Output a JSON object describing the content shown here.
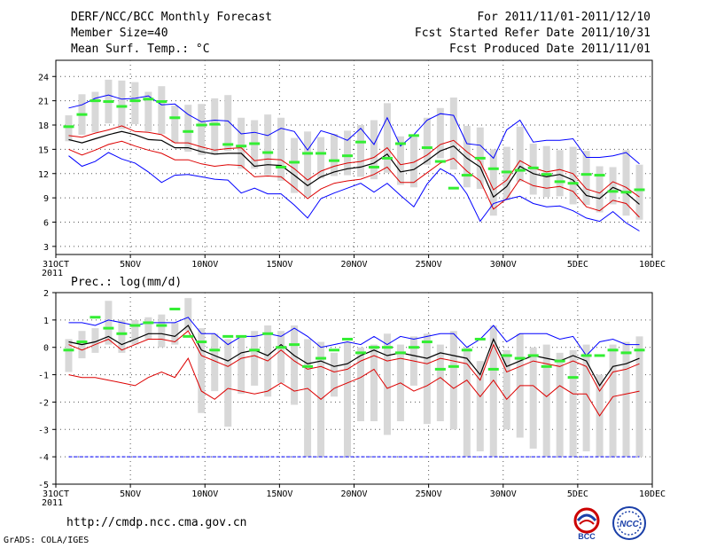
{
  "header": {
    "title": "DERF/NCC/BCC Monthly Forecast",
    "member_size": "Member Size=40",
    "variable": "Mean Surf. Temp.: °C",
    "period": "For 2011/11/01-2011/12/10",
    "fcst_started": "Fcst Started Refer Date 2011/10/31",
    "fcst_produced": "Fcst Produced Date 2011/11/01"
  },
  "footer": {
    "url": "http://cmdp.ncc.cma.gov.cn",
    "grads": "GrADS: COLA/IGES",
    "logo_bcc": "BCC",
    "logo_ncc": "NCC"
  },
  "colors": {
    "mean": "#000000",
    "upper": "#0000ff",
    "band": "#dd0000",
    "ensemble": "#d8d8d8",
    "obs": "#33ee33",
    "grid": "#555555"
  },
  "chart_data": [
    {
      "type": "line",
      "title": "",
      "ylabel": "Mean Surf. Temp.: °C",
      "ylim": [
        2,
        26
      ],
      "yticks": [
        3,
        6,
        9,
        12,
        15,
        18,
        21,
        24
      ],
      "xlim": [
        0,
        40
      ],
      "xticks": [
        {
          "pos": 0,
          "label": "31OCT",
          "sub": "2011"
        },
        {
          "pos": 5,
          "label": "5NOV"
        },
        {
          "pos": 10,
          "label": "10NOV"
        },
        {
          "pos": 15,
          "label": "15NOV"
        },
        {
          "pos": 20,
          "label": "20NOV"
        },
        {
          "pos": 25,
          "label": "25NOV"
        },
        {
          "pos": 30,
          "label": "30NOV"
        },
        {
          "pos": 35,
          "label": "5DEC"
        },
        {
          "pos": 40,
          "label": "10DEC"
        }
      ],
      "grid": true,
      "series": [
        {
          "name": "ensemble-mean",
          "color": "mean",
          "values": [
            16.2,
            15.8,
            16.3,
            16.8,
            17.2,
            16.8,
            16.2,
            16.1,
            15.2,
            15.2,
            14.7,
            14.4,
            14.5,
            14.5,
            12.9,
            13.1,
            13.0,
            11.8,
            10.5,
            11.6,
            12.2,
            12.6,
            12.8,
            13.3,
            14.4,
            12.2,
            12.5,
            13.6,
            14.8,
            15.4,
            13.9,
            12.8,
            9.1,
            10.4,
            12.9,
            12.0,
            11.6,
            11.9,
            11.2,
            9.3,
            8.9,
            10.3,
            9.6,
            8.2
          ]
        },
        {
          "name": "max",
          "color": "upper",
          "values": [
            20.1,
            20.5,
            21.3,
            21.7,
            21.2,
            21.3,
            21.6,
            20.5,
            20.6,
            19.3,
            18.4,
            18.6,
            18.5,
            16.9,
            17.1,
            16.7,
            17.6,
            17.2,
            14.9,
            17.3,
            16.8,
            16.1,
            17.6,
            15.6,
            18.9,
            15.4,
            16.8,
            18.6,
            19.4,
            19.2,
            15.7,
            15.5,
            13.9,
            17.4,
            18.6,
            15.9,
            16.1,
            16.1,
            16.3,
            14.0,
            14.0,
            14.2,
            14.6,
            13.2
          ]
        },
        {
          "name": "upper-band",
          "color": "band",
          "values": [
            16.7,
            16.5,
            17.0,
            17.4,
            17.9,
            17.2,
            17.1,
            16.8,
            15.8,
            15.8,
            15.3,
            14.9,
            15.1,
            15.2,
            13.6,
            13.8,
            13.7,
            12.6,
            11.2,
            12.3,
            12.9,
            13.3,
            13.5,
            14.0,
            15.2,
            13.1,
            13.4,
            14.3,
            15.6,
            16.1,
            14.7,
            13.5,
            10.0,
            11.2,
            13.6,
            12.7,
            12.2,
            12.5,
            12.0,
            10.1,
            9.6,
            11.0,
            10.3,
            9.1
          ]
        },
        {
          "name": "lower-band",
          "color": "band",
          "values": [
            15.0,
            14.3,
            14.9,
            15.6,
            16.0,
            15.4,
            14.9,
            14.5,
            13.7,
            13.7,
            13.2,
            12.9,
            13.1,
            13.0,
            11.6,
            11.7,
            11.6,
            10.3,
            8.9,
            10.1,
            10.8,
            11.1,
            11.3,
            11.9,
            12.8,
            10.9,
            10.9,
            12.1,
            13.3,
            13.9,
            12.3,
            11.1,
            7.6,
            8.9,
            11.3,
            10.5,
            10.2,
            10.4,
            9.8,
            7.9,
            7.4,
            8.7,
            8.3,
            6.6
          ]
        },
        {
          "name": "min",
          "color": "upper",
          "values": [
            14.2,
            12.9,
            13.5,
            14.6,
            13.8,
            13.3,
            12.2,
            10.9,
            11.8,
            11.9,
            11.6,
            11.3,
            11.2,
            9.6,
            10.2,
            9.5,
            9.5,
            8.1,
            6.5,
            8.9,
            9.6,
            10.2,
            10.8,
            9.7,
            10.8,
            9.3,
            7.9,
            10.7,
            12.6,
            11.7,
            9.5,
            6.1,
            8.3,
            8.8,
            9.2,
            8.3,
            7.9,
            8.0,
            7.4,
            6.5,
            6.1,
            7.3,
            5.9,
            4.9
          ]
        }
      ],
      "ensemble_ranges": [
        [
          16.0,
          19.2
        ],
        [
          16.8,
          21.8
        ],
        [
          17.1,
          22.1
        ],
        [
          18.2,
          23.6
        ],
        [
          17.5,
          23.5
        ],
        [
          18.1,
          23.3
        ],
        [
          17.2,
          22.1
        ],
        [
          16.9,
          22.8
        ],
        [
          15.8,
          20.4
        ],
        [
          14.7,
          20.5
        ],
        [
          14.3,
          20.6
        ],
        [
          14.3,
          21.3
        ],
        [
          14.8,
          21.7
        ],
        [
          12.6,
          18.9
        ],
        [
          12.6,
          18.6
        ],
        [
          11.8,
          19.3
        ],
        [
          11.1,
          18.9
        ],
        [
          9.6,
          16.4
        ],
        [
          9.1,
          17.2
        ],
        [
          11.4,
          16.5
        ],
        [
          11.7,
          16.9
        ],
        [
          11.8,
          17.3
        ],
        [
          11.6,
          18.0
        ],
        [
          11.3,
          18.6
        ],
        [
          12.1,
          20.7
        ],
        [
          10.6,
          16.6
        ],
        [
          10.3,
          16.5
        ],
        [
          13.1,
          18.9
        ],
        [
          13.9,
          20.1
        ],
        [
          12.5,
          21.4
        ],
        [
          10.3,
          17.9
        ],
        [
          10.1,
          17.7
        ],
        [
          6.8,
          15.0
        ],
        [
          8.7,
          15.3
        ],
        [
          11.0,
          17.8
        ],
        [
          9.4,
          15.7
        ],
        [
          9.1,
          15.4
        ],
        [
          9.2,
          14.9
        ],
        [
          8.2,
          15.3
        ],
        [
          8.1,
          14.8
        ],
        [
          7.2,
          12.9
        ],
        [
          8.2,
          12.8
        ],
        [
          6.8,
          14.9
        ],
        [
          6.3,
          13.1
        ]
      ],
      "observed": [
        17.8,
        19.3,
        21.0,
        20.9,
        20.3,
        21.0,
        21.2,
        20.9,
        18.9,
        17.2,
        18.0,
        18.1,
        15.6,
        15.4,
        15.7,
        14.6,
        12.8,
        13.4,
        14.5,
        14.5,
        13.6,
        14.2,
        15.9,
        12.8,
        13.9,
        15.7,
        16.7,
        15.2,
        13.5,
        10.2,
        11.8,
        13.9,
        12.6,
        12.2,
        12.4,
        12.7,
        11.9,
        11.0,
        10.8,
        11.9,
        11.8,
        9.8,
        9.7,
        10.0
      ]
    },
    {
      "type": "line",
      "title": "Prec.: log(mm/d)",
      "ylabel": "Prec.: log(mm/d)",
      "ylim": [
        -5,
        2
      ],
      "yticks": [
        -5,
        -4,
        -3,
        -2,
        -1,
        0,
        1,
        2
      ],
      "xlim": [
        0,
        40
      ],
      "xticks": [
        {
          "pos": 0,
          "label": "31OCT",
          "sub": "2011"
        },
        {
          "pos": 5,
          "label": "5NOV"
        },
        {
          "pos": 10,
          "label": "10NOV"
        },
        {
          "pos": 15,
          "label": "15NOV"
        },
        {
          "pos": 20,
          "label": "20NOV"
        },
        {
          "pos": 25,
          "label": "25NOV"
        },
        {
          "pos": 30,
          "label": "30NOV"
        },
        {
          "pos": 35,
          "label": "5DEC"
        },
        {
          "pos": 40,
          "label": "10DEC"
        }
      ],
      "grid": true,
      "series": [
        {
          "name": "max",
          "color": "upper",
          "values": [
            0.9,
            0.9,
            0.8,
            1.0,
            0.9,
            0.8,
            0.9,
            0.9,
            0.9,
            1.1,
            0.5,
            0.5,
            0.1,
            0.4,
            0.4,
            0.5,
            0.4,
            0.7,
            0.4,
            0.0,
            0.1,
            0.2,
            0.1,
            0.4,
            0.1,
            0.4,
            0.3,
            0.4,
            0.5,
            0.5,
            0.0,
            0.3,
            0.8,
            0.2,
            0.5,
            0.5,
            0.5,
            0.3,
            0.4,
            -0.3,
            0.2,
            0.3,
            0.1,
            0.1
          ]
        },
        {
          "name": "ensemble-mean",
          "color": "mean",
          "values": [
            0.2,
            0.1,
            0.2,
            0.4,
            0.1,
            0.3,
            0.5,
            0.5,
            0.4,
            0.8,
            -0.1,
            -0.3,
            -0.5,
            -0.2,
            -0.1,
            -0.3,
            0.1,
            -0.3,
            -0.6,
            -0.5,
            -0.7,
            -0.6,
            -0.3,
            -0.1,
            -0.3,
            -0.2,
            -0.3,
            -0.4,
            -0.2,
            -0.3,
            -0.4,
            -1.0,
            0.3,
            -0.7,
            -0.5,
            -0.3,
            -0.4,
            -0.5,
            -0.3,
            -0.5,
            -1.4,
            -0.7,
            -0.6,
            -0.4
          ]
        },
        {
          "name": "upper-band",
          "color": "band",
          "values": [
            0.1,
            -0.1,
            0.1,
            0.3,
            -0.1,
            0.1,
            0.3,
            0.3,
            0.2,
            0.6,
            -0.3,
            -0.5,
            -0.7,
            -0.4,
            -0.3,
            -0.5,
            -0.1,
            -0.5,
            -0.8,
            -0.7,
            -0.9,
            -0.8,
            -0.5,
            -0.3,
            -0.5,
            -0.4,
            -0.5,
            -0.6,
            -0.4,
            -0.5,
            -0.6,
            -1.2,
            0.1,
            -0.9,
            -0.7,
            -0.5,
            -0.6,
            -0.7,
            -0.5,
            -0.7,
            -1.6,
            -0.9,
            -0.8,
            -0.6
          ]
        },
        {
          "name": "lower-band",
          "color": "band",
          "values": [
            -1.0,
            -1.1,
            -1.1,
            -1.2,
            -1.3,
            -1.4,
            -1.1,
            -0.9,
            -1.1,
            -0.4,
            -1.6,
            -1.9,
            -1.5,
            -1.6,
            -1.7,
            -1.6,
            -1.3,
            -1.6,
            -1.5,
            -1.9,
            -1.5,
            -1.3,
            -1.1,
            -0.8,
            -1.5,
            -1.3,
            -1.6,
            -1.4,
            -1.1,
            -1.5,
            -1.2,
            -1.8,
            -1.2,
            -1.9,
            -1.4,
            -1.4,
            -1.8,
            -1.4,
            -1.7,
            -1.7,
            -2.5,
            -1.8,
            -1.7,
            -1.6
          ]
        },
        {
          "name": "floor",
          "color": "upper",
          "values": [
            -4,
            -4,
            -4,
            -4,
            -4,
            -4,
            -4,
            -4,
            -4,
            -4,
            -4,
            -4,
            -4,
            -4,
            -4,
            -4,
            -4,
            -4,
            -4,
            -4,
            -4,
            -4,
            -4,
            -4,
            -4,
            -4,
            -4,
            -4,
            -4,
            -4,
            -4,
            -4,
            -4,
            -4,
            -4,
            -4,
            -4,
            -4,
            -4,
            -4,
            -4,
            -4,
            -4,
            -4
          ]
        }
      ],
      "ensemble_ranges": [
        [
          -0.9,
          0.3
        ],
        [
          -0.4,
          0.6
        ],
        [
          -0.2,
          0.7
        ],
        [
          0.1,
          1.7
        ],
        [
          -0.2,
          1.0
        ],
        [
          0.1,
          1.0
        ],
        [
          0.3,
          1.1
        ],
        [
          0.0,
          1.2
        ],
        [
          0.1,
          0.9
        ],
        [
          0.6,
          1.8
        ],
        [
          -2.4,
          0.7
        ],
        [
          -1.6,
          0.5
        ],
        [
          -2.9,
          0.3
        ],
        [
          -1.7,
          0.4
        ],
        [
          -1.4,
          0.6
        ],
        [
          -1.8,
          0.8
        ],
        [
          -1.3,
          0.6
        ],
        [
          -2.1,
          0.8
        ],
        [
          -4.0,
          0.3
        ],
        [
          -4.0,
          0.2
        ],
        [
          -1.8,
          -0.2
        ],
        [
          -4.0,
          0.2
        ],
        [
          -2.7,
          0.0
        ],
        [
          -2.7,
          0.1
        ],
        [
          -3.2,
          0.5
        ],
        [
          -2.7,
          0.1
        ],
        [
          -1.4,
          0.4
        ],
        [
          -2.8,
          0.5
        ],
        [
          -2.7,
          0.1
        ],
        [
          -3.0,
          0.6
        ],
        [
          -4.0,
          0.0
        ],
        [
          -3.8,
          -0.5
        ],
        [
          -4.0,
          0.8
        ],
        [
          -3.0,
          -0.1
        ],
        [
          -3.3,
          0.5
        ],
        [
          -3.7,
          0.0
        ],
        [
          -4.0,
          0.1
        ],
        [
          -4.0,
          -0.2
        ],
        [
          -4.0,
          -0.1
        ],
        [
          -3.8,
          0.1
        ],
        [
          -4.0,
          -1.0
        ],
        [
          -4.0,
          0.1
        ],
        [
          -4.0,
          0.2
        ],
        [
          -4.0,
          0.4
        ]
      ],
      "observed": [
        -0.1,
        0.2,
        1.1,
        0.7,
        0.5,
        0.8,
        0.9,
        0.8,
        1.4,
        0.4,
        0.2,
        -0.1,
        0.4,
        0.4,
        -0.1,
        0.5,
        0.0,
        0.1,
        -0.7,
        -0.4,
        -0.1,
        0.3,
        -0.2,
        0.0,
        0.0,
        -0.2,
        0.0,
        0.2,
        -0.8,
        -0.7,
        -0.1,
        0.3,
        -0.8,
        -0.3,
        -0.4,
        -0.3,
        -0.7,
        -0.5,
        -1.1,
        -0.3,
        -0.3,
        -0.1,
        -0.2,
        -0.1
      ]
    }
  ]
}
